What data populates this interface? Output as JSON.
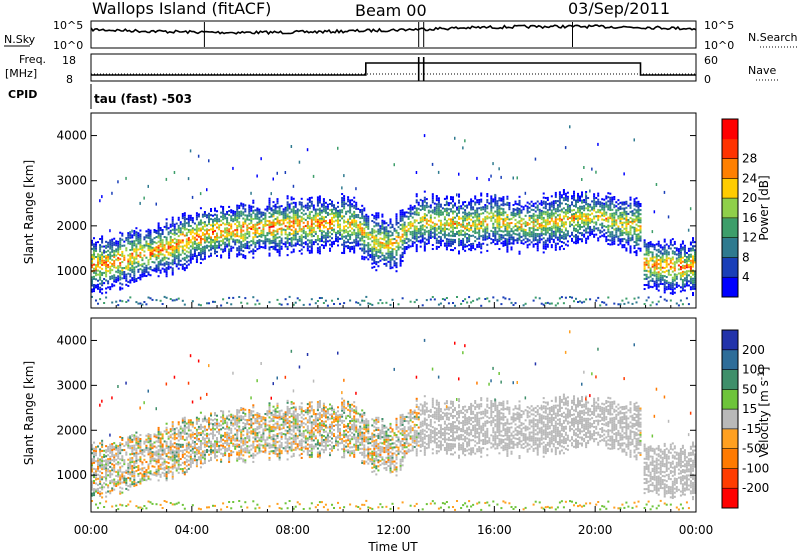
{
  "header": {
    "station": "Wallops Island (fitACF)",
    "beam": "Beam 00",
    "date": "03/Sep/2011"
  },
  "status_panel": {
    "nsky_label": "N.Sky",
    "nsearch_label": "N.Search",
    "freq_label_1": "Freq.",
    "freq_label_2": "[MHz]",
    "nave_label": "Nave",
    "cpid_label": "CPID",
    "cpid_value": "tau (fast) -503",
    "nsky_ticks": [
      "10^5",
      "10^0"
    ],
    "nsearch_ticks": [
      "10^5",
      "10^0"
    ],
    "freq_ticks": [
      "18",
      "8"
    ],
    "nave_ticks": [
      "60",
      "0"
    ]
  },
  "chart_data": [
    {
      "type": "heatmap",
      "panel": "power",
      "xlabel": "",
      "ylabel": "Slant Range [km]",
      "x_unit": "hours UT",
      "xlim": [
        0,
        24
      ],
      "ylim": [
        180,
        4500
      ],
      "yticks": [
        "1000",
        "2000",
        "3000",
        "4000"
      ],
      "colorbar": {
        "label": "Power [dB]",
        "ticks": [
          "4",
          "8",
          "12",
          "16",
          "20",
          "24",
          "28"
        ],
        "range": [
          0,
          30
        ],
        "colors": [
          "#0000ff",
          "#1a3fb8",
          "#2f7a8f",
          "#3d9e6a",
          "#8fcf4a",
          "#ffcc00",
          "#ff8000",
          "#ff3300",
          "#ff0000"
        ]
      },
      "echo_bands": [
        {
          "x": [
            0,
            0.5,
            1,
            2,
            3,
            4,
            4.5,
            5,
            5.5,
            6,
            7,
            8,
            9,
            9.7
          ],
          "y": [
            1100,
            1120,
            1200,
            1350,
            1500,
            1700,
            1800,
            1850,
            1900,
            1900,
            1950,
            2000,
            2000,
            2050
          ],
          "max_db": 28
        },
        {
          "x": [
            9.7,
            10.5,
            11,
            11.5,
            12,
            12.5,
            13,
            14,
            15,
            16,
            17,
            18,
            19,
            20,
            21,
            21.8
          ],
          "y": [
            2050,
            2000,
            1700,
            1600,
            1550,
            1900,
            2100,
            2050,
            2000,
            2100,
            2000,
            2050,
            2150,
            2200,
            2050,
            1950
          ],
          "max_db": 24
        },
        {
          "x": [
            21.9,
            22.5,
            23,
            23.5,
            24
          ],
          "y": [
            1150,
            1100,
            1080,
            1050,
            1100
          ],
          "max_db": 28
        }
      ]
    },
    {
      "type": "heatmap",
      "panel": "velocity",
      "xlabel": "Time UT",
      "ylabel": "Slant Range [km]",
      "x_unit": "hours UT",
      "xlim": [
        0,
        24
      ],
      "ylim": [
        180,
        4500
      ],
      "xticks": [
        "00:00",
        "04:00",
        "08:00",
        "12:00",
        "16:00",
        "20:00",
        "00:00"
      ],
      "yticks": [
        "1000",
        "2000",
        "3000",
        "4000"
      ],
      "colorbar": {
        "label": "Velocity [m s-1]",
        "label_main": "Velocity [m s",
        "label_exp": "-1",
        "label_end": "]",
        "ticks": [
          "200",
          "100",
          "50",
          "15",
          "-15",
          "-50",
          "-100",
          "-200"
        ],
        "colors": [
          "#2233aa",
          "#2e6d99",
          "#3f8f6a",
          "#6ec43a",
          "#b9b9b9",
          "#ffa020",
          "#ff7a00",
          "#ff3c00",
          "#ff0000"
        ]
      }
    }
  ]
}
